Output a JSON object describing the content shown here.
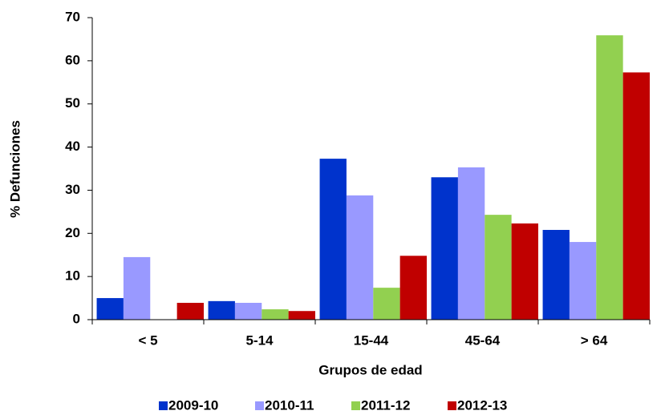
{
  "chart_data": {
    "type": "bar",
    "x_label": "Grupos de edad",
    "y_label": "% Defunciones",
    "categories": [
      "< 5",
      "5-14",
      "15-44",
      "45-64",
      "> 64"
    ],
    "series": [
      {
        "name": "2009-10",
        "color": "#0033cc",
        "values": [
          5.0,
          4.3,
          37.3,
          33.0,
          20.8
        ]
      },
      {
        "name": "2010-11",
        "color": "#9999ff",
        "values": [
          14.5,
          3.9,
          28.8,
          35.3,
          18.0
        ]
      },
      {
        "name": "2011-12",
        "color": "#92d050",
        "values": [
          0,
          2.4,
          7.4,
          24.3,
          65.9
        ]
      },
      {
        "name": "2012-13",
        "color": "#c00000",
        "values": [
          3.9,
          2.0,
          14.8,
          22.3,
          57.3
        ]
      }
    ],
    "ylim": [
      0,
      70
    ],
    "yticks": [
      0,
      10,
      20,
      30,
      40,
      50,
      60,
      70
    ]
  }
}
